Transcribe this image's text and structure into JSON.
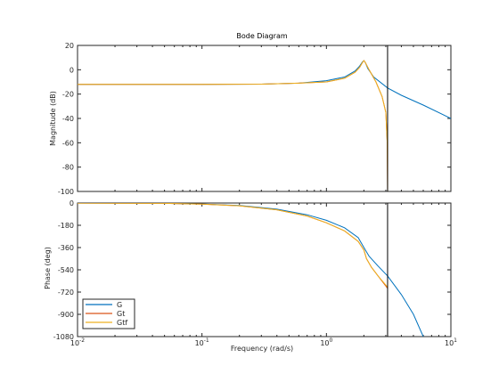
{
  "chart_data": {
    "type": "line",
    "title": "Bode Diagram",
    "xlabel": "Frequency  (rad/s)",
    "xscale": "log",
    "xlim": [
      0.01,
      10
    ],
    "xticks": [
      "10^-2",
      "10^-1",
      "10^0",
      "10^1"
    ],
    "marker_line_x": 3.1,
    "panels": [
      {
        "name": "magnitude",
        "ylabel": "Magnitude (dB)",
        "ylim": [
          -100,
          20
        ],
        "yticks": [
          20,
          0,
          -20,
          -40,
          -60,
          -80,
          -100
        ],
        "series": [
          {
            "name": "G",
            "color": "#0072BD",
            "x": [
              0.01,
              0.05,
              0.1,
              0.3,
              0.6,
              1.0,
              1.4,
              1.7,
              1.85,
              1.95,
              2.0,
              2.05,
              2.15,
              2.4,
              3.1,
              4.0,
              6.0,
              10.0
            ],
            "y": [
              -12,
              -12,
              -12,
              -11.8,
              -11,
              -9,
              -6,
              -1,
              3,
              6.5,
              7.5,
              6,
              1,
              -6,
              -15,
              -21,
              -29,
              -40
            ]
          },
          {
            "name": "Gt",
            "color": "#D95319",
            "x": [
              0.01,
              0.05,
              0.1,
              0.3,
              0.6,
              1.0,
              1.4,
              1.7,
              1.85,
              1.95,
              2.0,
              2.05,
              2.2,
              2.5,
              2.8,
              3.0,
              3.08,
              3.1
            ],
            "y": [
              -12,
              -12,
              -12,
              -11.8,
              -11,
              -10,
              -7,
              -2,
              2,
              6,
              7.5,
              6,
              0,
              -10,
              -22,
              -35,
              -60,
              -100
            ]
          },
          {
            "name": "Gtf",
            "color": "#EDB120",
            "x": [
              0.01,
              0.05,
              0.1,
              0.3,
              0.6,
              1.0,
              1.4,
              1.7,
              1.85,
              1.95,
              2.0,
              2.05,
              2.2,
              2.5,
              2.8,
              3.0,
              3.08,
              3.1
            ],
            "y": [
              -12,
              -12,
              -12,
              -11.8,
              -11,
              -10,
              -7,
              -2,
              2,
              6,
              7.5,
              6,
              0,
              -10,
              -22,
              -35,
              -60,
              -100
            ]
          }
        ]
      },
      {
        "name": "phase",
        "ylabel": "Phase (deg)",
        "ylim": [
          -1080,
          0
        ],
        "yticks": [
          0,
          -180,
          -360,
          -540,
          -720,
          -900,
          -1080
        ],
        "series": [
          {
            "name": "G",
            "color": "#0072BD",
            "x": [
              0.01,
              0.05,
              0.1,
              0.2,
              0.4,
              0.7,
              1.0,
              1.4,
              1.8,
              2.0,
              2.2,
              2.6,
              3.1,
              4.0,
              5.0,
              6.0
            ],
            "y": [
              -1,
              -3,
              -8,
              -20,
              -50,
              -95,
              -140,
              -200,
              -280,
              -360,
              -430,
              -510,
              -590,
              -740,
              -900,
              -1080
            ]
          },
          {
            "name": "Gt",
            "color": "#D95319",
            "x": [
              0.01,
              0.05,
              0.1,
              0.2,
              0.4,
              0.7,
              1.0,
              1.4,
              1.8,
              2.0,
              2.1,
              2.3,
              2.6,
              3.1
            ],
            "y": [
              -1,
              -3,
              -9,
              -22,
              -55,
              -105,
              -160,
              -225,
              -310,
              -380,
              -450,
              -520,
              -590,
              -690
            ]
          },
          {
            "name": "Gtf",
            "color": "#EDB120",
            "x": [
              0.01,
              0.05,
              0.1,
              0.2,
              0.4,
              0.7,
              1.0,
              1.4,
              1.8,
              2.0,
              2.1,
              2.3,
              2.6,
              3.1
            ],
            "y": [
              -1,
              -3,
              -9,
              -22,
              -55,
              -105,
              -160,
              -225,
              -310,
              -380,
              -450,
              -520,
              -590,
              -680
            ]
          }
        ]
      }
    ],
    "legend": {
      "placement": "bottom-left",
      "entries": [
        "G",
        "Gt",
        "Gtf"
      ]
    }
  }
}
